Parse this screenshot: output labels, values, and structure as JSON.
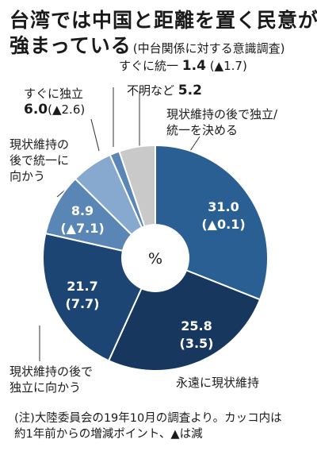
{
  "header": {
    "title_line1": "台湾では中国と距離を置く民意が",
    "title_line2": "強まっている",
    "subtitle": "(中台関係に対する意識調査)"
  },
  "chart_data": {
    "type": "pie",
    "unit": "%",
    "slices": [
      {
        "label": "現状維持の後で独立/統一を決める",
        "value": 31.0,
        "change": "▲0.1",
        "value_text": "31.0",
        "change_text": "(▲0.1)",
        "color": "#2a5f94"
      },
      {
        "label": "永遠に現状維持",
        "value": 25.8,
        "change": "3.5",
        "value_text": "25.8",
        "change_text": "(3.5)",
        "color": "#17375e"
      },
      {
        "label": "現状維持の後で独立に向かう",
        "value": 21.7,
        "change": "7.7",
        "value_text": "21.7",
        "change_text": "(7.7)",
        "color": "#1d4574"
      },
      {
        "label": "現状維持の後で統一に向かう",
        "value": 8.9,
        "change": "▲7.1",
        "value_text": "8.9",
        "change_text": "(▲7.1)",
        "color": "#5a86b6"
      },
      {
        "label": "すぐに独立",
        "value": 6.0,
        "change": "▲2.6",
        "value_text": "6.0",
        "change_text": "(▲2.6)",
        "color": "#87a9cf"
      },
      {
        "label": "すぐに統一",
        "value": 1.4,
        "change": "▲1.7",
        "value_text": "1.4",
        "change_text": "(▲1.7)",
        "color": "#5a86b6"
      },
      {
        "label": "不明など",
        "value": 5.2,
        "change": "",
        "value_text": "5.2",
        "change_text": "",
        "color": "#c9c9c9"
      }
    ],
    "center_label": "%"
  },
  "labels": {
    "unify_now": "すぐに統一",
    "unify_now_val": "1.4",
    "unify_now_chg": "(▲1.7)",
    "indep_now": "すぐに独立",
    "indep_now_val": "6.0",
    "indep_now_chg": "(▲2.6)",
    "unknown": "不明など",
    "unknown_val": "5.2",
    "decide_l1": "現状維持の後で独立/",
    "decide_l2": "統一を決める",
    "to_unify_l1": "現状維持の",
    "to_unify_l2": "後で統一に",
    "to_unify_l3": "向かう",
    "forever": "永遠に現状維持",
    "to_indep_l1": "現状維持の後で",
    "to_indep_l2": "独立に向かう"
  },
  "footnote": {
    "line1": "(注)大陸委員会の19年10月の調査より。カッコ内は",
    "line2": "約1年前からの増減ポイント、▲は減"
  }
}
